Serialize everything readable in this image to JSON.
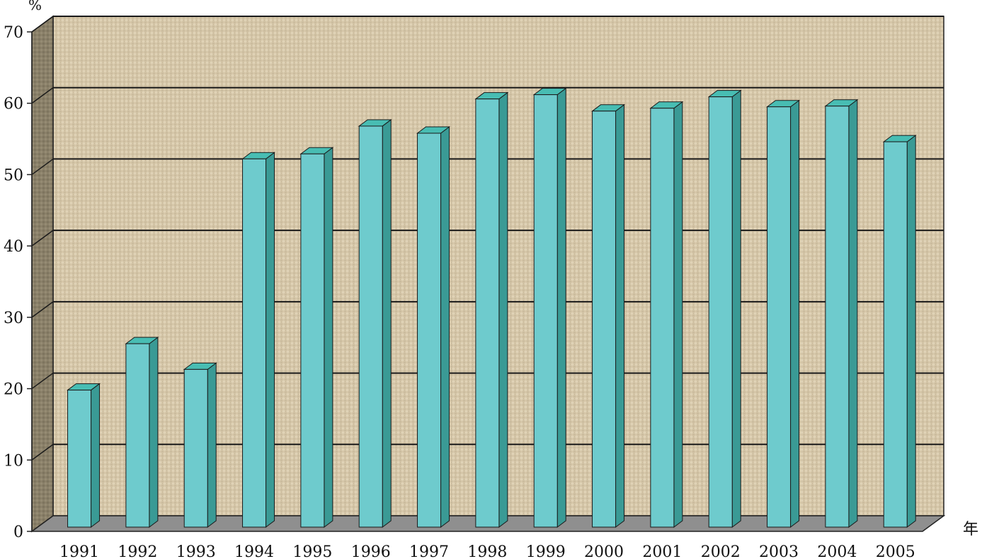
{
  "chart_data": {
    "type": "bar",
    "title": "",
    "ylabel": "%",
    "xlabel": "年",
    "ylim": [
      0,
      70
    ],
    "yticks": [
      "0",
      "10",
      "20",
      "30",
      "40",
      "50",
      "60",
      "70"
    ],
    "grid": true,
    "categories": [
      "1991",
      "1992",
      "1993",
      "1994",
      "1995",
      "1996",
      "1997",
      "1998",
      "1999",
      "2000",
      "2001",
      "2002",
      "2003",
      "2004",
      "2005"
    ],
    "values": [
      19.8,
      26.3,
      22.7,
      52.2,
      52.9,
      56.8,
      55.8,
      60.6,
      61.2,
      58.9,
      59.3,
      60.9,
      59.5,
      59.6,
      54.6
    ],
    "colors": {
      "bar_front": "#6ecbcd",
      "bar_side": "#3a9a95",
      "bar_top": "#48bdb3",
      "back_wall": "#d6c7a9",
      "side_wall": "#8a8069",
      "floor": "#8f8f8f"
    }
  }
}
